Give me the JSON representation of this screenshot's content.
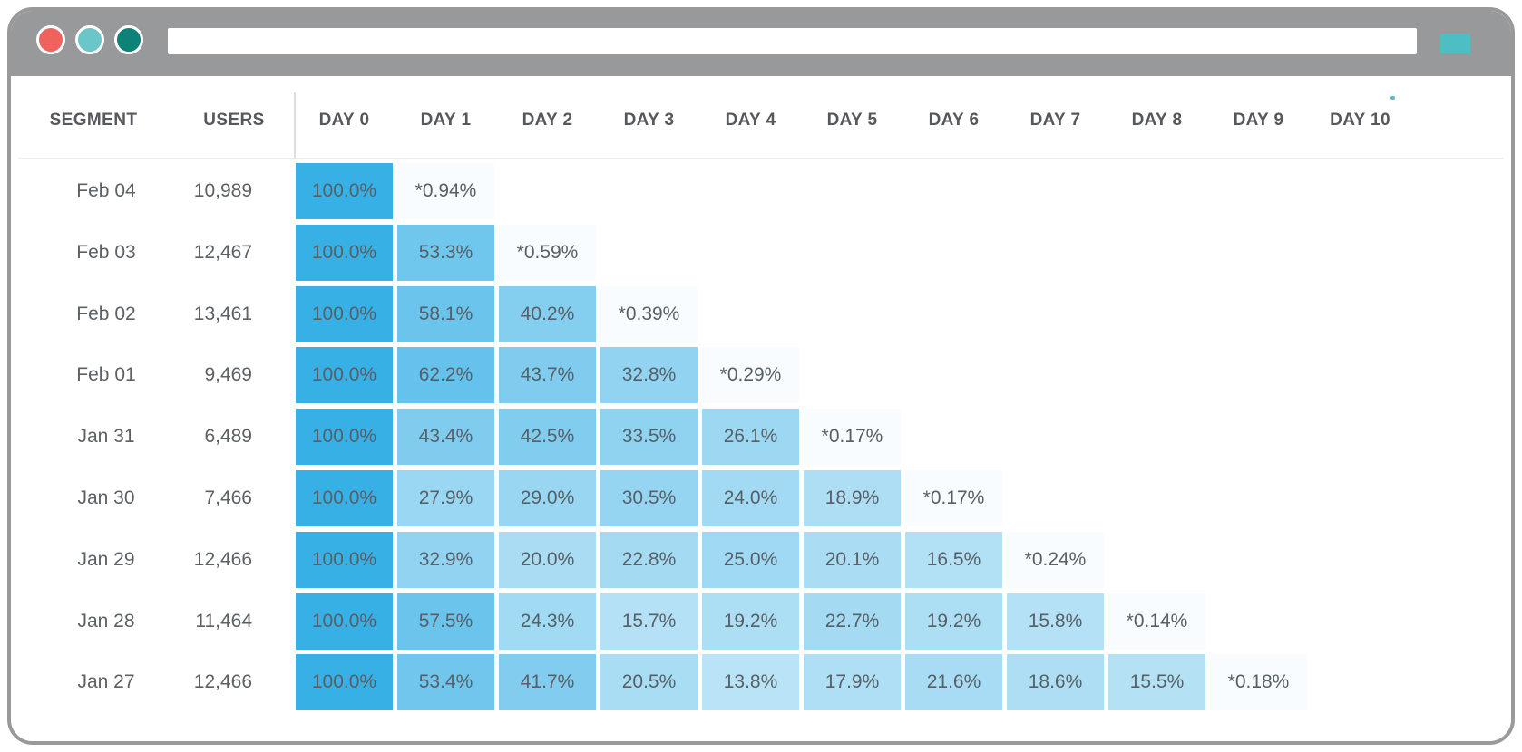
{
  "browser": {
    "traffic_lights": [
      {
        "name": "close",
        "color": "#F0625D"
      },
      {
        "name": "minimize",
        "color": "#6BC6C9"
      },
      {
        "name": "maximize",
        "color": "#0D8276"
      }
    ],
    "chrome_color": "#98999B",
    "url_bar": {
      "value": "",
      "placeholder": ""
    },
    "action_button_color": "#4EBEC5"
  },
  "table": {
    "segment_header": "SEGMENT",
    "users_header": "USERS"
  },
  "chart_data": {
    "type": "heatmap",
    "description": "Daily cohort retention table; blue intensity proportional to retention percent",
    "columns": [
      "DAY 0",
      "DAY 1",
      "DAY 2",
      "DAY 3",
      "DAY 4",
      "DAY 5",
      "DAY 6",
      "DAY 7",
      "DAY 8",
      "DAY 9",
      "DAY 10"
    ],
    "color_scale": {
      "min": "#FBFDFE",
      "max": "#37B0E6"
    },
    "rows": [
      {
        "segment": "Feb 04",
        "users": "10,989",
        "cells": [
          {
            "label": "100.0%",
            "value": 100.0
          },
          {
            "label": "*0.94%",
            "value": 0.94
          }
        ]
      },
      {
        "segment": "Feb 03",
        "users": "12,467",
        "cells": [
          {
            "label": "100.0%",
            "value": 100.0
          },
          {
            "label": "53.3%",
            "value": 53.3
          },
          {
            "label": "*0.59%",
            "value": 0.59
          }
        ]
      },
      {
        "segment": "Feb 02",
        "users": "13,461",
        "cells": [
          {
            "label": "100.0%",
            "value": 100.0
          },
          {
            "label": "58.1%",
            "value": 58.1
          },
          {
            "label": "40.2%",
            "value": 40.2
          },
          {
            "label": "*0.39%",
            "value": 0.39
          }
        ]
      },
      {
        "segment": "Feb 01",
        "users": "9,469",
        "cells": [
          {
            "label": "100.0%",
            "value": 100.0
          },
          {
            "label": "62.2%",
            "value": 62.2
          },
          {
            "label": "43.7%",
            "value": 43.7
          },
          {
            "label": "32.8%",
            "value": 32.8
          },
          {
            "label": "*0.29%",
            "value": 0.29
          }
        ]
      },
      {
        "segment": "Jan 31",
        "users": "6,489",
        "cells": [
          {
            "label": "100.0%",
            "value": 100.0
          },
          {
            "label": "43.4%",
            "value": 43.4
          },
          {
            "label": "42.5%",
            "value": 42.5
          },
          {
            "label": "33.5%",
            "value": 33.5
          },
          {
            "label": "26.1%",
            "value": 26.1
          },
          {
            "label": "*0.17%",
            "value": 0.17
          }
        ]
      },
      {
        "segment": "Jan 30",
        "users": "7,466",
        "cells": [
          {
            "label": "100.0%",
            "value": 100.0
          },
          {
            "label": "27.9%",
            "value": 27.9
          },
          {
            "label": "29.0%",
            "value": 29.0
          },
          {
            "label": "30.5%",
            "value": 30.5
          },
          {
            "label": "24.0%",
            "value": 24.0
          },
          {
            "label": "18.9%",
            "value": 18.9
          },
          {
            "label": "*0.17%",
            "value": 0.17
          }
        ]
      },
      {
        "segment": "Jan 29",
        "users": "12,466",
        "cells": [
          {
            "label": "100.0%",
            "value": 100.0
          },
          {
            "label": "32.9%",
            "value": 32.9
          },
          {
            "label": "20.0%",
            "value": 20.0
          },
          {
            "label": "22.8%",
            "value": 22.8
          },
          {
            "label": "25.0%",
            "value": 25.0
          },
          {
            "label": "20.1%",
            "value": 20.1
          },
          {
            "label": "16.5%",
            "value": 16.5
          },
          {
            "label": "*0.24%",
            "value": 0.24
          }
        ]
      },
      {
        "segment": "Jan 28",
        "users": "11,464",
        "cells": [
          {
            "label": "100.0%",
            "value": 100.0
          },
          {
            "label": "57.5%",
            "value": 57.5
          },
          {
            "label": "24.3%",
            "value": 24.3
          },
          {
            "label": "15.7%",
            "value": 15.7
          },
          {
            "label": "19.2%",
            "value": 19.2
          },
          {
            "label": "22.7%",
            "value": 22.7
          },
          {
            "label": "19.2%",
            "value": 19.2
          },
          {
            "label": "15.8%",
            "value": 15.8
          },
          {
            "label": "*0.14%",
            "value": 0.14
          }
        ]
      },
      {
        "segment": "Jan 27",
        "users": "12,466",
        "cells": [
          {
            "label": "100.0%",
            "value": 100.0
          },
          {
            "label": "53.4%",
            "value": 53.4
          },
          {
            "label": "41.7%",
            "value": 41.7
          },
          {
            "label": "20.5%",
            "value": 20.5
          },
          {
            "label": "13.8%",
            "value": 13.8
          },
          {
            "label": "17.9%",
            "value": 17.9
          },
          {
            "label": "21.6%",
            "value": 21.6
          },
          {
            "label": "18.6%",
            "value": 18.6
          },
          {
            "label": "15.5%",
            "value": 15.5
          },
          {
            "label": "*0.18%",
            "value": 0.18
          }
        ]
      }
    ]
  }
}
